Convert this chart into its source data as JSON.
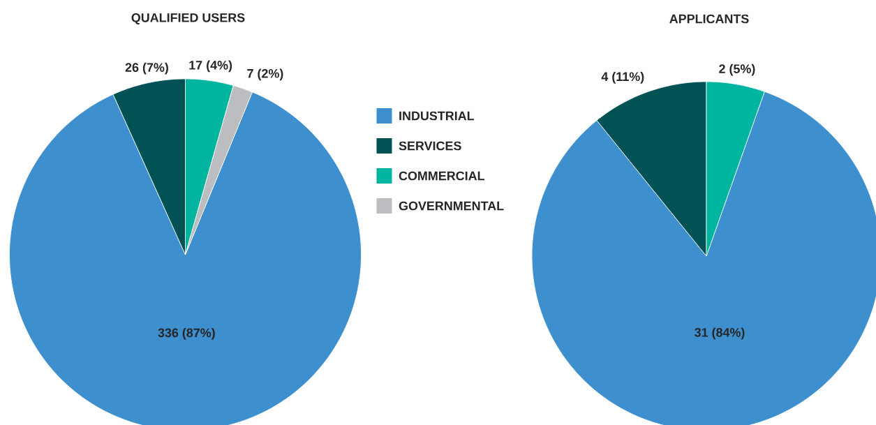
{
  "chart_data": [
    {
      "type": "pie",
      "title": "QUALIFIED USERS",
      "categories": [
        "INDUSTRIAL",
        "SERVICES",
        "COMMERCIAL",
        "GOVERNMENTAL"
      ],
      "values": [
        336,
        26,
        17,
        7
      ],
      "colors": [
        "#3d8fce",
        "#005254",
        "#00b5a0",
        "#bcbdc1"
      ],
      "value_labels": [
        "336 (87%)",
        "26 (7%)",
        "17 (4%)",
        "7 (2%)"
      ],
      "legend": "right"
    },
    {
      "type": "pie",
      "title": "APPLICANTS",
      "categories": [
        null,
        null,
        null
      ],
      "values": [
        31,
        4,
        2
      ],
      "colors": [
        "#3d8fce",
        "#005254",
        "#00b5a0"
      ],
      "value_labels": [
        "31 (84%)",
        "4 (11%)",
        "2 (5%)"
      ]
    }
  ]
}
